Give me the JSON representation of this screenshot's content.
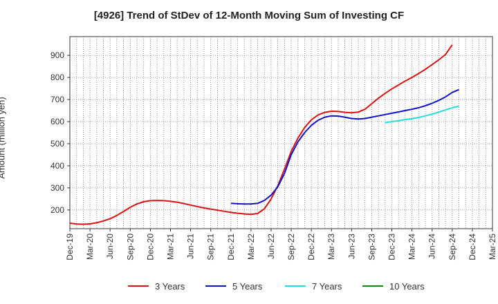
{
  "chart_data": {
    "type": "line",
    "title": "[4926]  Trend of StDev of 12-Month Moving Sum of Investing CF",
    "xlabel": "",
    "ylabel": "Amount (million yen)",
    "ylim": [
      115,
      985
    ],
    "yticks": [
      200,
      300,
      400,
      500,
      600,
      700,
      800,
      900
    ],
    "xticks": [
      "Dec-19",
      "Mar-20",
      "Jun-20",
      "Sep-20",
      "Dec-20",
      "Mar-21",
      "Jun-21",
      "Sep-21",
      "Dec-21",
      "Mar-22",
      "Jun-22",
      "Sep-22",
      "Dec-22",
      "Mar-23",
      "Jun-23",
      "Sep-23",
      "Dec-23",
      "Mar-24",
      "Jun-24",
      "Sep-24",
      "Dec-24",
      "Mar-25"
    ],
    "grid": true,
    "legend_position": "bottom",
    "series": [
      {
        "name": "3 Years",
        "color": "#dd1111",
        "points": [
          [
            "Dec-19",
            140
          ],
          [
            "Jan-20",
            136
          ],
          [
            "Feb-20",
            135
          ],
          [
            "Mar-20",
            137
          ],
          [
            "Apr-20",
            142
          ],
          [
            "May-20",
            150
          ],
          [
            "Jun-20",
            160
          ],
          [
            "Jul-20",
            175
          ],
          [
            "Aug-20",
            193
          ],
          [
            "Sep-20",
            212
          ],
          [
            "Oct-20",
            227
          ],
          [
            "Nov-20",
            237
          ],
          [
            "Dec-20",
            242
          ],
          [
            "Jan-21",
            243
          ],
          [
            "Feb-21",
            242
          ],
          [
            "Mar-21",
            239
          ],
          [
            "Apr-21",
            235
          ],
          [
            "May-21",
            229
          ],
          [
            "Jun-21",
            222
          ],
          [
            "Jul-21",
            215
          ],
          [
            "Aug-21",
            209
          ],
          [
            "Sep-21",
            204
          ],
          [
            "Oct-21",
            199
          ],
          [
            "Nov-21",
            194
          ],
          [
            "Dec-21",
            189
          ],
          [
            "Jan-22",
            185
          ],
          [
            "Feb-22",
            182
          ],
          [
            "Mar-22",
            180
          ],
          [
            "Apr-22",
            184
          ],
          [
            "May-22",
            205
          ],
          [
            "Jun-22",
            250
          ],
          [
            "Jul-22",
            310
          ],
          [
            "Aug-22",
            385
          ],
          [
            "Sep-22",
            465
          ],
          [
            "Oct-22",
            525
          ],
          [
            "Nov-22",
            573
          ],
          [
            "Dec-22",
            608
          ],
          [
            "Jan-23",
            630
          ],
          [
            "Feb-23",
            642
          ],
          [
            "Mar-23",
            647
          ],
          [
            "Apr-23",
            646
          ],
          [
            "May-23",
            642
          ],
          [
            "Jun-23",
            640
          ],
          [
            "Jul-23",
            643
          ],
          [
            "Aug-23",
            656
          ],
          [
            "Sep-23",
            681
          ],
          [
            "Oct-23",
            706
          ],
          [
            "Nov-23",
            728
          ],
          [
            "Dec-23",
            748
          ],
          [
            "Jan-24",
            766
          ],
          [
            "Feb-24",
            784
          ],
          [
            "Mar-24",
            800
          ],
          [
            "Apr-24",
            818
          ],
          [
            "May-24",
            837
          ],
          [
            "Jun-24",
            858
          ],
          [
            "Jul-24",
            880
          ],
          [
            "Aug-24",
            904
          ],
          [
            "Sep-24",
            948
          ]
        ]
      },
      {
        "name": "5 Years",
        "color": "#1111cc",
        "points": [
          [
            "Dec-21",
            230
          ],
          [
            "Jan-22",
            228
          ],
          [
            "Feb-22",
            227
          ],
          [
            "Mar-22",
            227
          ],
          [
            "Apr-22",
            230
          ],
          [
            "May-22",
            243
          ],
          [
            "Jun-22",
            267
          ],
          [
            "Jul-22",
            305
          ],
          [
            "Aug-22",
            365
          ],
          [
            "Sep-22",
            450
          ],
          [
            "Oct-22",
            508
          ],
          [
            "Nov-22",
            550
          ],
          [
            "Dec-22",
            583
          ],
          [
            "Jan-23",
            606
          ],
          [
            "Feb-23",
            620
          ],
          [
            "Mar-23",
            626
          ],
          [
            "Apr-23",
            625
          ],
          [
            "May-23",
            620
          ],
          [
            "Jun-23",
            614
          ],
          [
            "Jul-23",
            612
          ],
          [
            "Aug-23",
            614
          ],
          [
            "Sep-23",
            620
          ],
          [
            "Oct-23",
            626
          ],
          [
            "Nov-23",
            632
          ],
          [
            "Dec-23",
            638
          ],
          [
            "Jan-24",
            644
          ],
          [
            "Feb-24",
            650
          ],
          [
            "Mar-24",
            656
          ],
          [
            "Apr-24",
            663
          ],
          [
            "May-24",
            672
          ],
          [
            "Jun-24",
            683
          ],
          [
            "Jul-24",
            696
          ],
          [
            "Aug-24",
            712
          ],
          [
            "Sep-24",
            732
          ],
          [
            "Oct-24",
            745
          ]
        ]
      },
      {
        "name": "7 Years",
        "color": "#22dddd",
        "points": [
          [
            "Nov-23",
            595
          ],
          [
            "Dec-23",
            600
          ],
          [
            "Jan-24",
            604
          ],
          [
            "Feb-24",
            609
          ],
          [
            "Mar-24",
            613
          ],
          [
            "Apr-24",
            619
          ],
          [
            "May-24",
            626
          ],
          [
            "Jun-24",
            634
          ],
          [
            "Jul-24",
            643
          ],
          [
            "Aug-24",
            653
          ],
          [
            "Sep-24",
            663
          ],
          [
            "Oct-24",
            670
          ]
        ]
      },
      {
        "name": "10 Years",
        "color": "#118811",
        "points": []
      }
    ]
  }
}
